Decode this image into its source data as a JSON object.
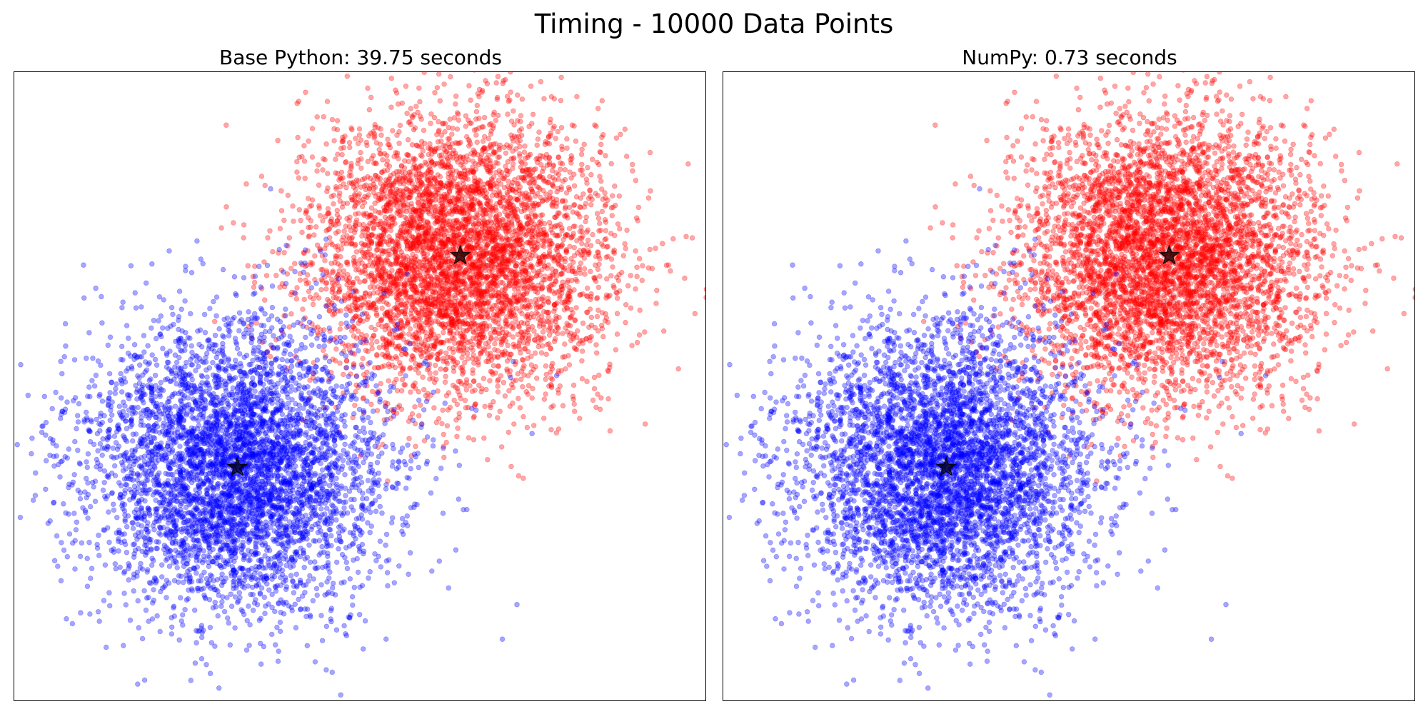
{
  "chart_data": [
    {
      "type": "scatter",
      "title": "Base Python: 39.75 seconds",
      "clusters": [
        {
          "color": "#ff0000",
          "n_points": 5000,
          "center": [
            3.0,
            3.0
          ],
          "std": [
            1.0,
            1.0
          ]
        },
        {
          "color": "#0000ff",
          "n_points": 5000,
          "center": [
            0.0,
            0.0
          ],
          "std": [
            1.0,
            1.0
          ]
        }
      ],
      "centroids": [
        {
          "x": 3.0,
          "y": 3.0,
          "marker": "star",
          "color": "#000000"
        },
        {
          "x": 0.0,
          "y": 0.0,
          "marker": "star",
          "color": "#000000"
        }
      ],
      "xlim": [
        -3.0,
        6.3
      ],
      "ylim": [
        -3.3,
        5.6
      ],
      "axes_ticks_visible": false,
      "grid": false,
      "point_alpha": 0.35
    },
    {
      "type": "scatter",
      "title": "NumPy: 0.73 seconds",
      "clusters": [
        {
          "color": "#ff0000",
          "n_points": 5000,
          "center": [
            3.0,
            3.0
          ],
          "std": [
            1.0,
            1.0
          ]
        },
        {
          "color": "#0000ff",
          "n_points": 5000,
          "center": [
            0.0,
            0.0
          ],
          "std": [
            1.0,
            1.0
          ]
        }
      ],
      "centroids": [
        {
          "x": 3.0,
          "y": 3.0,
          "marker": "star",
          "color": "#000000"
        },
        {
          "x": 0.0,
          "y": 0.0,
          "marker": "star",
          "color": "#000000"
        }
      ],
      "xlim": [
        -3.0,
        6.3
      ],
      "ylim": [
        -3.3,
        5.6
      ],
      "axes_ticks_visible": false,
      "grid": false,
      "point_alpha": 0.35
    }
  ],
  "figure": {
    "suptitle": "Timing - 10000 Data Points"
  }
}
